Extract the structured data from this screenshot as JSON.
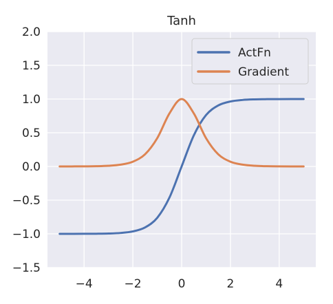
{
  "chart_data": {
    "type": "line",
    "title": "Tanh",
    "xlabel": "",
    "ylabel": "",
    "xlim": [
      -5.5,
      5.5
    ],
    "ylim": [
      -1.5,
      2.0
    ],
    "xticks": [
      -4,
      -2,
      0,
      2,
      4
    ],
    "xtick_labels": [
      "−4",
      "−2",
      "0",
      "2",
      "4"
    ],
    "yticks": [
      -1.5,
      -1.0,
      -0.5,
      0.0,
      0.5,
      1.0,
      1.5,
      2.0
    ],
    "ytick_labels": [
      "−1.5",
      "−1.0",
      "−0.5",
      "0.0",
      "0.5",
      "1.0",
      "1.5",
      "2.0"
    ],
    "grid": true,
    "legend_position": "top-right",
    "x": [
      -5,
      -4.5,
      -4,
      -3.5,
      -3,
      -2.5,
      -2,
      -1.5,
      -1,
      -0.5,
      0,
      0.5,
      1,
      1.5,
      2,
      2.5,
      3,
      3.5,
      4,
      4.5,
      5
    ],
    "series": [
      {
        "name": "ActFn",
        "color": "#4c72b0",
        "values": [
          -0.9999,
          -0.9998,
          -0.9993,
          -0.9982,
          -0.9951,
          -0.9866,
          -0.964,
          -0.9051,
          -0.7616,
          -0.4621,
          0.0,
          0.4621,
          0.7616,
          0.9051,
          0.964,
          0.9866,
          0.9951,
          0.9982,
          0.9993,
          0.9998,
          0.9999
        ]
      },
      {
        "name": "Gradient",
        "color": "#dd8452",
        "values": [
          0.0002,
          0.0005,
          0.0013,
          0.0036,
          0.0099,
          0.0266,
          0.0707,
          0.1808,
          0.42,
          0.7864,
          1.0,
          0.7864,
          0.42,
          0.1808,
          0.0707,
          0.0266,
          0.0099,
          0.0036,
          0.0013,
          0.0005,
          0.0002
        ]
      }
    ]
  }
}
